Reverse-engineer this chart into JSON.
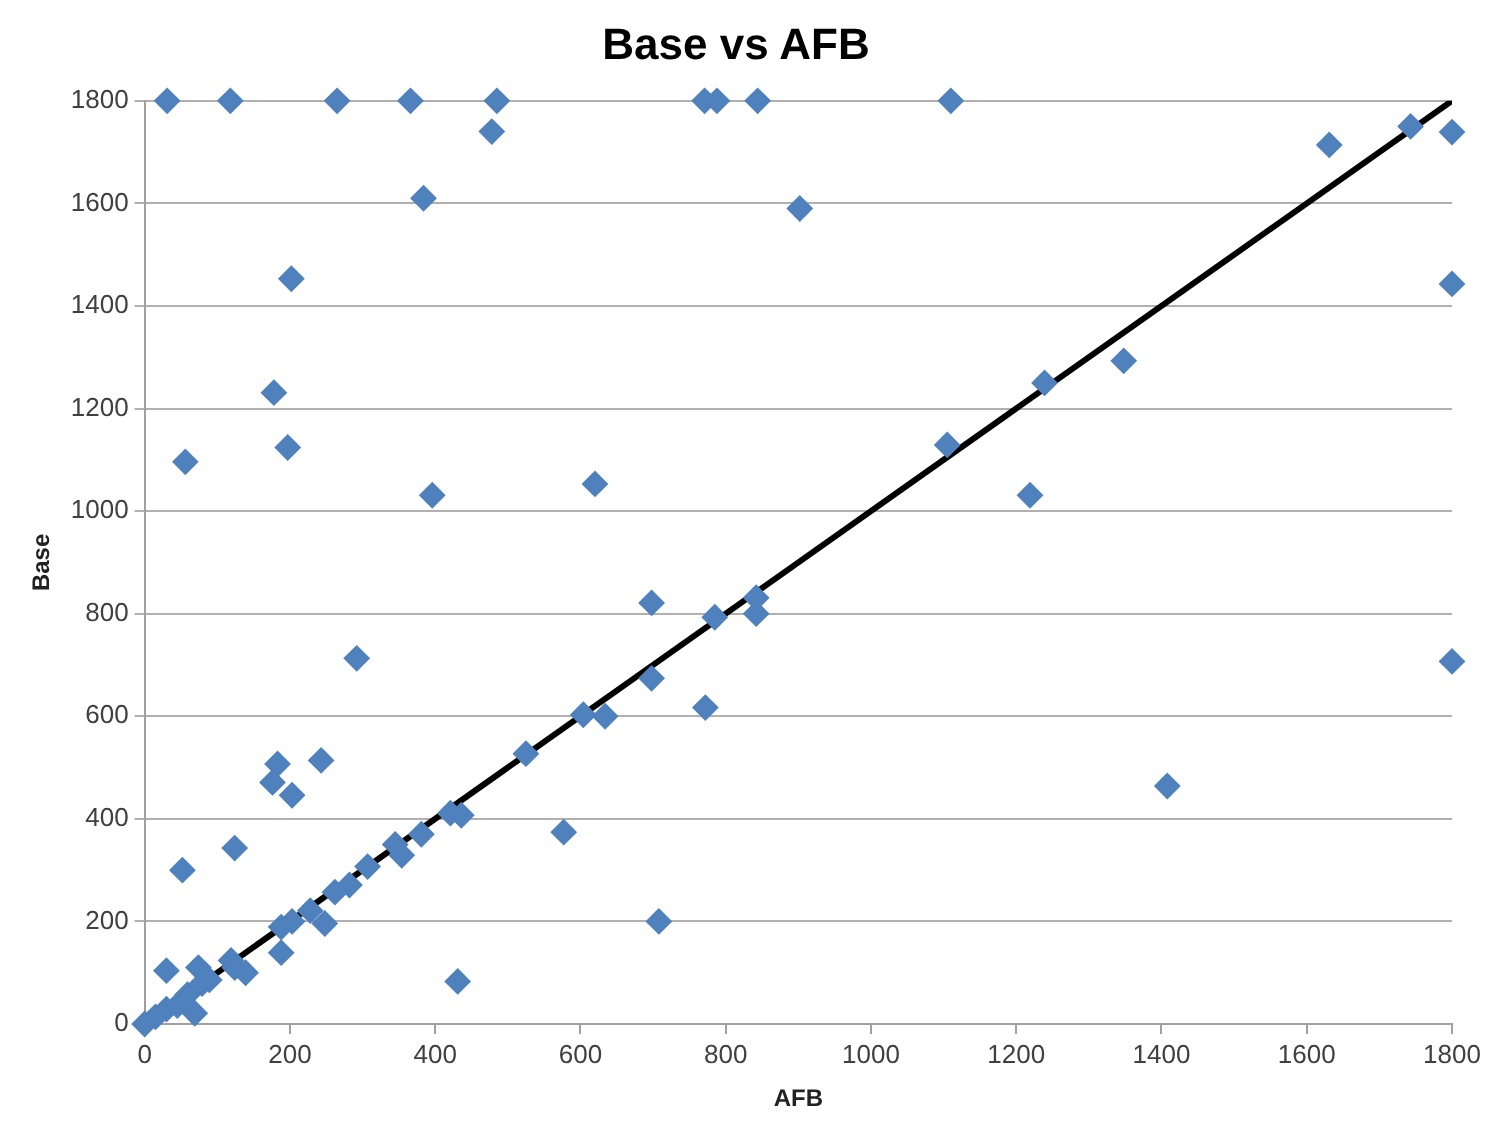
{
  "chart_data": {
    "type": "scatter",
    "title": "Base vs AFB",
    "xlabel": "AFB",
    "ylabel": "Base",
    "xlim": [
      0,
      1800
    ],
    "xticks": [
      0,
      200,
      400,
      600,
      800,
      1000,
      1200,
      1400,
      1600,
      1800
    ],
    "ylim": [
      0,
      1800
    ],
    "yticks": [
      0,
      200,
      400,
      600,
      800,
      1000,
      1200,
      1400,
      1600,
      1800
    ],
    "grid": "y",
    "legend": false,
    "marker": "diamond",
    "series": [
      {
        "color": "#4f81bd",
        "x": [
          31,
          118,
          265,
          366,
          485,
          771,
          788,
          844,
          1110,
          478,
          384,
          902,
          202,
          178,
          56,
          197,
          396,
          620,
          1631,
          1743,
          1800,
          1800,
          1348,
          1239,
          1105,
          1219,
          1800,
          1408,
          698,
          785,
          842,
          842,
          698,
          772,
          604,
          634,
          525,
          577,
          708,
          431,
          421,
          436,
          381,
          345,
          354,
          307,
          282,
          262,
          228,
          203,
          188,
          248,
          188,
          292,
          183,
          176,
          203,
          243,
          124,
          52,
          30,
          74,
          69,
          119,
          139,
          124,
          89,
          59,
          30,
          15,
          0,
          79,
          45
        ],
        "values": [
          1800,
          1800,
          1800,
          1800,
          1800,
          1800,
          1800,
          1800,
          1800,
          1740,
          1610,
          1590,
          1453,
          1231,
          1096,
          1124,
          1031,
          1053,
          1714,
          1750,
          1739,
          1443,
          1293,
          1250,
          1129,
          1031,
          707,
          464,
          821,
          793,
          831,
          800,
          674,
          617,
          603,
          600,
          527,
          374,
          200,
          83,
          411,
          407,
          370,
          350,
          329,
          307,
          271,
          257,
          221,
          200,
          189,
          196,
          139,
          713,
          507,
          471,
          446,
          514,
          343,
          300,
          104,
          110,
          21,
          124,
          100,
          110,
          86,
          57,
          29,
          14,
          0,
          79,
          36
        ]
      },
      {
        "type": "line",
        "color": "#000000",
        "x": [
          0,
          1800
        ],
        "values": [
          0,
          1800
        ],
        "marker": "none"
      }
    ]
  }
}
